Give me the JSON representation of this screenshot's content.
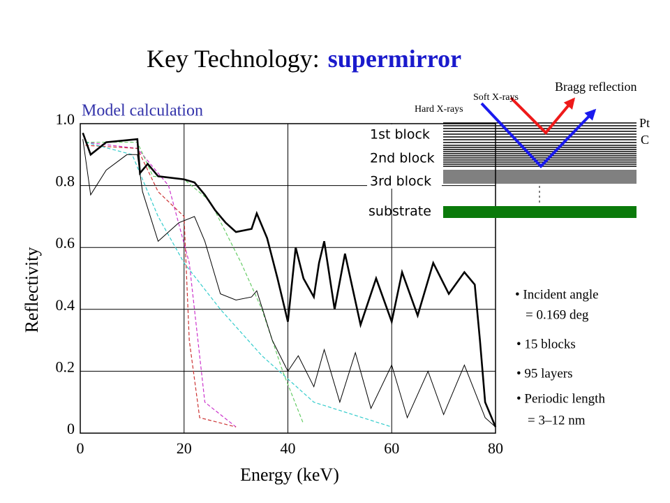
{
  "chart_data": {
    "type": "line",
    "title": "Key Technology:",
    "title_highlight": "supermirror",
    "annotation": "Model calculation",
    "x_label": "Energy (keV)",
    "y_label": "Reflectivity",
    "xlim": [
      0,
      80
    ],
    "ylim": [
      0,
      1
    ],
    "xticks": [
      0,
      20,
      40,
      60,
      80
    ],
    "yticks": [
      0,
      0.2,
      0.4,
      0.6,
      0.8,
      {
        "value": 1,
        "label": "1.0"
      }
    ],
    "grid": true,
    "series": [
      {
        "color": "#000000",
        "width": 2.6,
        "dash": false,
        "x": [
          0.5,
          2,
          5,
          11,
          11.5,
          13,
          15,
          20,
          22,
          24,
          26,
          28,
          30,
          33,
          34,
          36,
          38,
          40,
          41.5,
          43,
          45,
          46,
          47,
          49,
          51,
          54,
          57,
          60,
          62,
          65,
          68,
          71,
          74,
          76,
          77,
          78,
          80
        ],
        "values": [
          0.97,
          0.9,
          0.94,
          0.95,
          0.84,
          0.87,
          0.83,
          0.82,
          0.81,
          0.77,
          0.72,
          0.68,
          0.65,
          0.66,
          0.71,
          0.63,
          0.5,
          0.36,
          0.6,
          0.5,
          0.44,
          0.55,
          0.62,
          0.4,
          0.58,
          0.35,
          0.5,
          0.36,
          0.52,
          0.38,
          0.55,
          0.45,
          0.52,
          0.48,
          0.3,
          0.1,
          0.02
        ]
      },
      {
        "color": "#000000",
        "width": 1,
        "dash": false,
        "x": [
          0.5,
          2,
          5,
          9,
          11,
          12,
          15,
          19,
          22,
          24,
          27,
          30,
          33,
          34,
          37,
          40,
          42,
          45,
          47,
          50,
          53,
          56,
          60,
          63,
          67,
          70,
          74,
          78,
          80
        ],
        "values": [
          0.95,
          0.77,
          0.85,
          0.9,
          0.9,
          0.78,
          0.62,
          0.68,
          0.7,
          0.62,
          0.45,
          0.43,
          0.44,
          0.46,
          0.3,
          0.2,
          0.25,
          0.15,
          0.27,
          0.1,
          0.26,
          0.08,
          0.22,
          0.05,
          0.2,
          0.06,
          0.22,
          0.05,
          0.02
        ]
      },
      {
        "color": "#66cc66",
        "width": 1.2,
        "dash": true,
        "x": [
          1,
          11,
          14,
          20,
          25,
          31,
          35,
          39,
          43
        ],
        "values": [
          0.94,
          0.94,
          0.83,
          0.82,
          0.75,
          0.55,
          0.4,
          0.2,
          0.03
        ]
      },
      {
        "color": "#33cccc",
        "width": 1.2,
        "dash": true,
        "x": [
          1,
          10,
          15,
          20,
          27,
          35,
          45,
          60
        ],
        "values": [
          0.94,
          0.9,
          0.7,
          0.55,
          0.4,
          0.25,
          0.1,
          0.02
        ]
      },
      {
        "color": "#cc3333",
        "width": 1.2,
        "dash": true,
        "x": [
          1,
          11,
          15,
          20,
          21,
          23,
          30
        ],
        "values": [
          0.93,
          0.92,
          0.78,
          0.7,
          0.3,
          0.05,
          0.02
        ]
      },
      {
        "color": "#cc33cc",
        "width": 1.2,
        "dash": true,
        "x": [
          1,
          11,
          17,
          21,
          24,
          30
        ],
        "values": [
          0.94,
          0.92,
          0.8,
          0.55,
          0.1,
          0.02
        ]
      }
    ]
  },
  "diagram": {
    "bragg": "Bragg reflection",
    "soft": "Soft X-rays",
    "hard": "Hard X-rays",
    "pt": "Pt",
    "c": "C",
    "blocks": [
      "1st block",
      "2nd block",
      "3rd block"
    ],
    "substrate": "substrate"
  },
  "notes": [
    "• Incident angle",
    "= 0.169 deg",
    "• 15 blocks",
    "• 95 layers",
    "• Periodic length",
    "= 3–12 nm"
  ]
}
